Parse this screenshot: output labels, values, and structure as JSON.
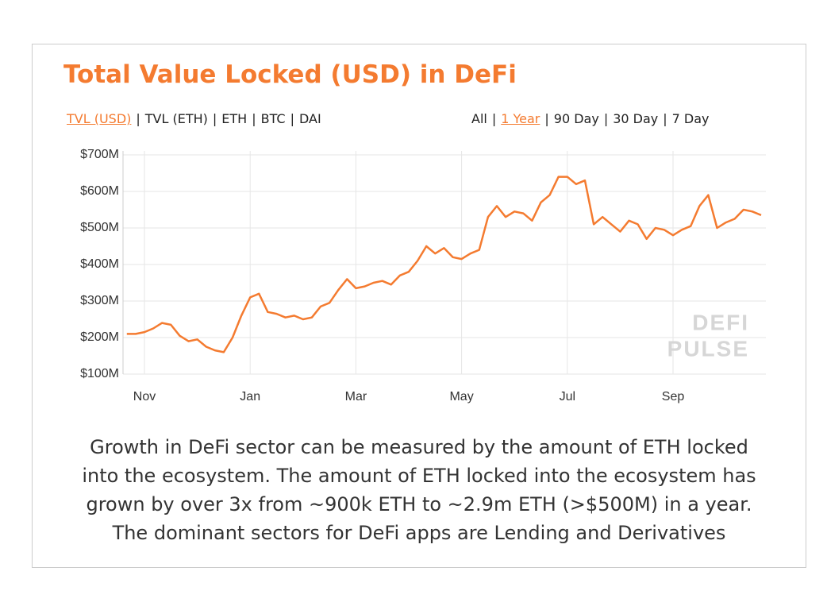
{
  "chart_data": {
    "type": "line",
    "title": "Total Value Locked (USD) in DeFi",
    "categories": [
      null,
      null,
      "Nov",
      null,
      null,
      null,
      null,
      null,
      null,
      null,
      null,
      null,
      null,
      null,
      "Jan",
      null,
      null,
      null,
      null,
      null,
      null,
      null,
      null,
      null,
      null,
      null,
      "Mar",
      null,
      null,
      null,
      null,
      null,
      null,
      null,
      null,
      null,
      null,
      null,
      "May",
      null,
      null,
      null,
      null,
      null,
      null,
      null,
      null,
      null,
      null,
      null,
      "Jul",
      null,
      null,
      null,
      null,
      null,
      null,
      null,
      null,
      null,
      null,
      null,
      "Sep",
      null,
      null,
      null,
      null,
      null,
      null,
      null,
      null,
      null,
      null
    ],
    "values": [
      210,
      210,
      215,
      225,
      240,
      235,
      205,
      190,
      195,
      175,
      165,
      160,
      200,
      260,
      310,
      320,
      270,
      265,
      255,
      260,
      250,
      255,
      285,
      295,
      330,
      360,
      335,
      340,
      350,
      355,
      345,
      370,
      380,
      410,
      450,
      430,
      445,
      420,
      415,
      430,
      440,
      530,
      560,
      530,
      545,
      540,
      520,
      570,
      590,
      640,
      640,
      620,
      630,
      510,
      530,
      510,
      490,
      520,
      510,
      470,
      500,
      495,
      480,
      495,
      505,
      560,
      590,
      500,
      515,
      525,
      550,
      545,
      535
    ],
    "color": "#f47b30",
    "ylim": [
      100,
      700
    ],
    "yticks": [
      {
        "value": 100,
        "label": "$100M"
      },
      {
        "value": 200,
        "label": "$200M"
      },
      {
        "value": 300,
        "label": "$300M"
      },
      {
        "value": 400,
        "label": "$400M"
      },
      {
        "value": 500,
        "label": "$500M"
      },
      {
        "value": 600,
        "label": "$600M"
      },
      {
        "value": 700,
        "label": "$700M"
      }
    ],
    "grid": true
  },
  "metric_tabs": [
    "TVL (USD)",
    "TVL (ETH)",
    "ETH",
    "BTC",
    "DAI"
  ],
  "range_tabs": [
    "All",
    "1 Year",
    "90 Day",
    "30 Day",
    "7 Day"
  ],
  "watermark": [
    "DEFI",
    "PULSE"
  ],
  "caption": [
    "Growth in DeFi sector can be measured by the amount of ETH locked",
    "into the ecosystem. The amount of ETH locked into the ecosystem has",
    "grown by over 3x from ~900k ETH to ~2.9m ETH (>$500M) in a year.",
    "The dominant sectors for DeFi apps are Lending and Derivatives"
  ]
}
